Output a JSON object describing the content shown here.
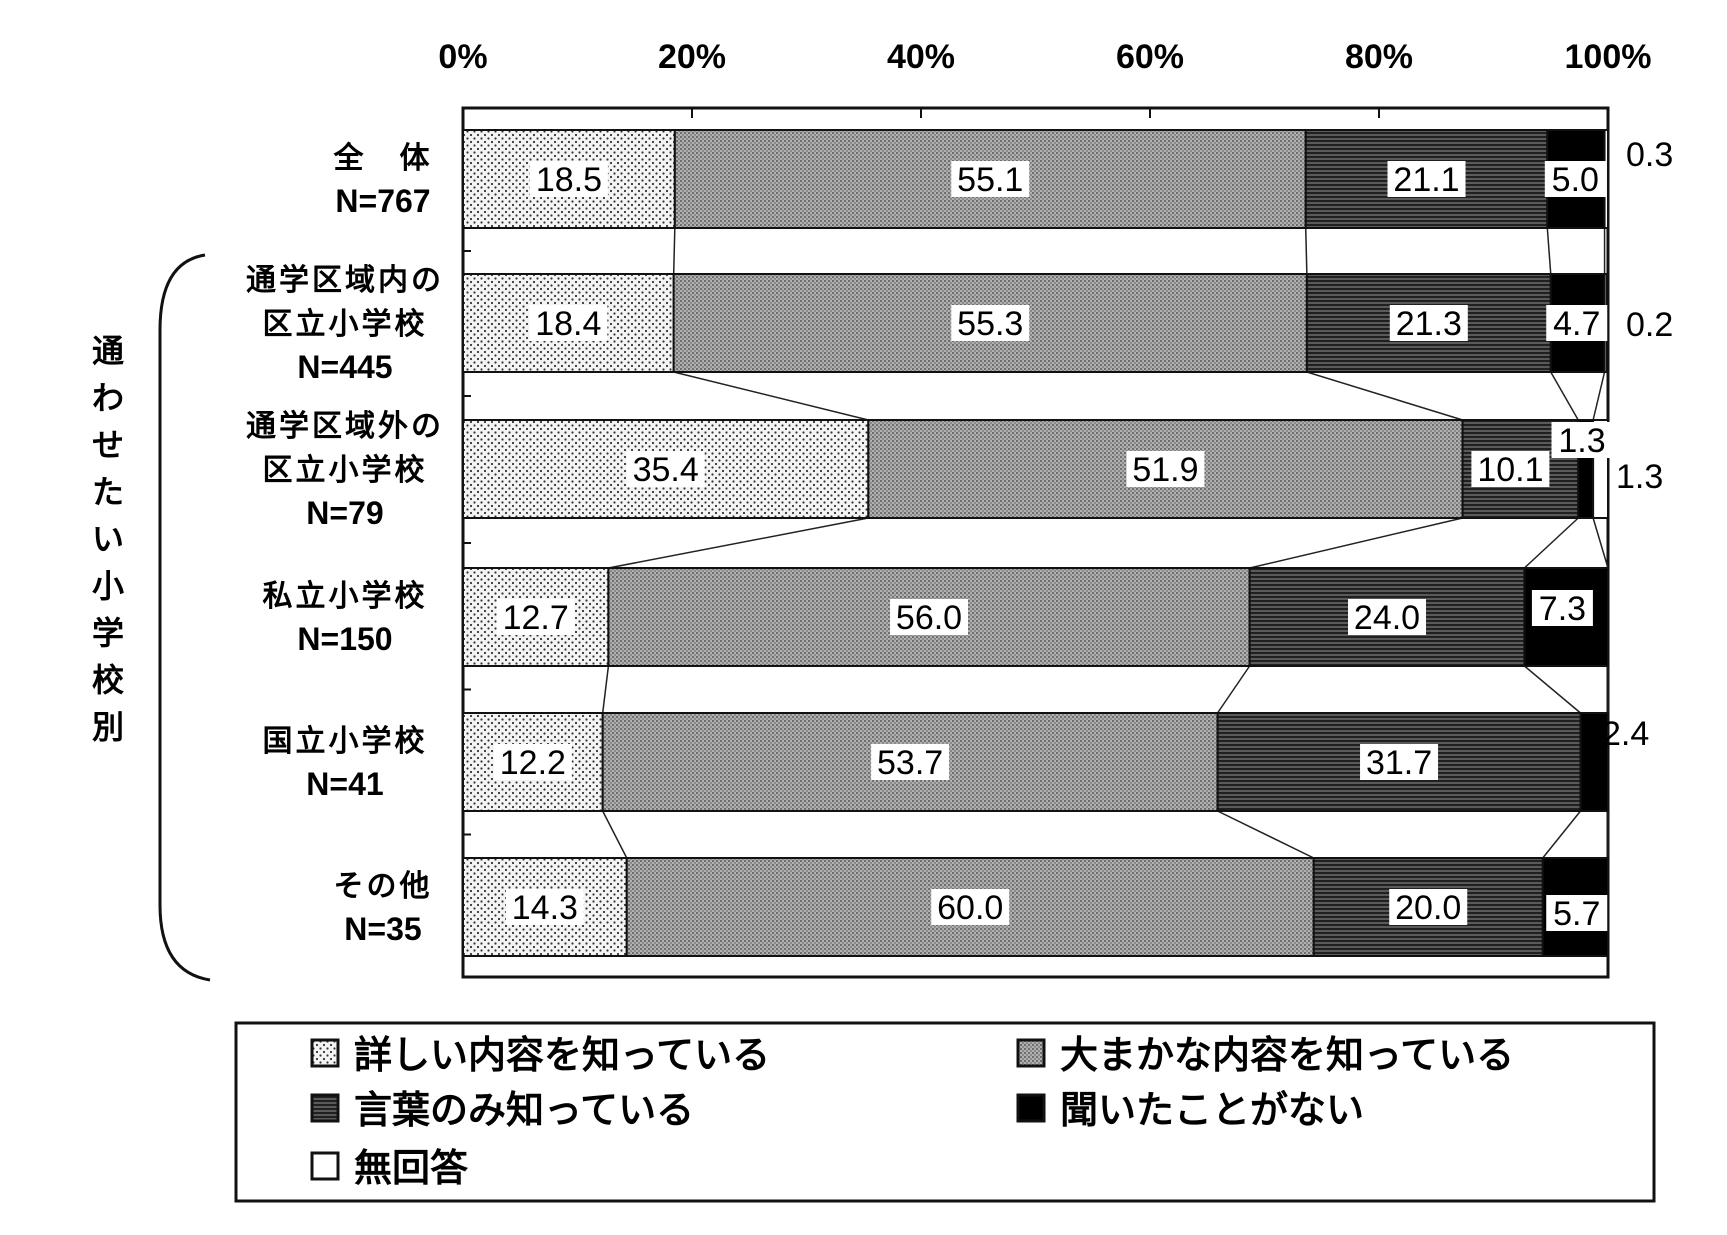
{
  "chart_data": {
    "type": "bar",
    "orientation": "horizontal",
    "stacked": true,
    "percent_axis_ticks": [
      "0%",
      "20%",
      "40%",
      "60%",
      "80%",
      "100%"
    ],
    "xlim": [
      0,
      100
    ],
    "group_label": "通わせたい小学校別",
    "categories": [
      {
        "name": "全　体",
        "n": "N=767"
      },
      {
        "name_lines": [
          "通学区域内の",
          "区立小学校"
        ],
        "n": "N=445"
      },
      {
        "name_lines": [
          "通学区域外の",
          "区立小学校"
        ],
        "n": "N=79"
      },
      {
        "name": "私立小学校",
        "n": "N=150"
      },
      {
        "name": "国立小学校",
        "n": "N=41"
      },
      {
        "name": "その他",
        "n": "N=35"
      }
    ],
    "series": [
      {
        "name": "詳しい内容を知っている",
        "values": [
          18.5,
          18.4,
          35.4,
          12.7,
          12.2,
          14.3
        ],
        "labels": [
          "18.5",
          "18.4",
          "35.4",
          "12.7",
          "12.2",
          "14.3"
        ]
      },
      {
        "name": "大まかな内容を知っている",
        "values": [
          55.1,
          55.3,
          51.9,
          56.0,
          53.7,
          60.0
        ],
        "labels": [
          "55.1",
          "55.3",
          "51.9",
          "56.0",
          "53.7",
          "60.0"
        ]
      },
      {
        "name": "言葉のみ知っている",
        "values": [
          21.1,
          21.3,
          10.1,
          24.0,
          31.7,
          20.0
        ],
        "labels": [
          "21.1",
          "21.3",
          "10.1",
          "24.0",
          "31.7",
          "20.0"
        ]
      },
      {
        "name": "聞いたことがない",
        "values": [
          5.0,
          4.7,
          1.3,
          7.3,
          2.4,
          5.7
        ],
        "labels": [
          "5.0",
          "4.7",
          "1.3",
          "7.3",
          "2.4",
          "5.7"
        ]
      },
      {
        "name": "無回答",
        "values": [
          0.3,
          0.2,
          1.3,
          0.0,
          0.0,
          0.0
        ],
        "labels": [
          "0.3",
          "0.2",
          "1.3",
          "",
          "",
          ""
        ]
      }
    ],
    "legend_placement": "bottom",
    "legend": [
      {
        "label": "詳しい内容を知っている",
        "pattern": "dots"
      },
      {
        "label": "大まかな内容を知っている",
        "pattern": "grid"
      },
      {
        "label": "言葉のみ知っている",
        "pattern": "hlines"
      },
      {
        "label": "聞いたことがない",
        "pattern": "solid"
      },
      {
        "label": "無回答",
        "pattern": "none"
      }
    ],
    "colors": {
      "dots": "#f2f2f2",
      "grid": "#9c9c9c",
      "hlines": "#444444",
      "solid": "#000000",
      "none": "#ffffff"
    }
  }
}
